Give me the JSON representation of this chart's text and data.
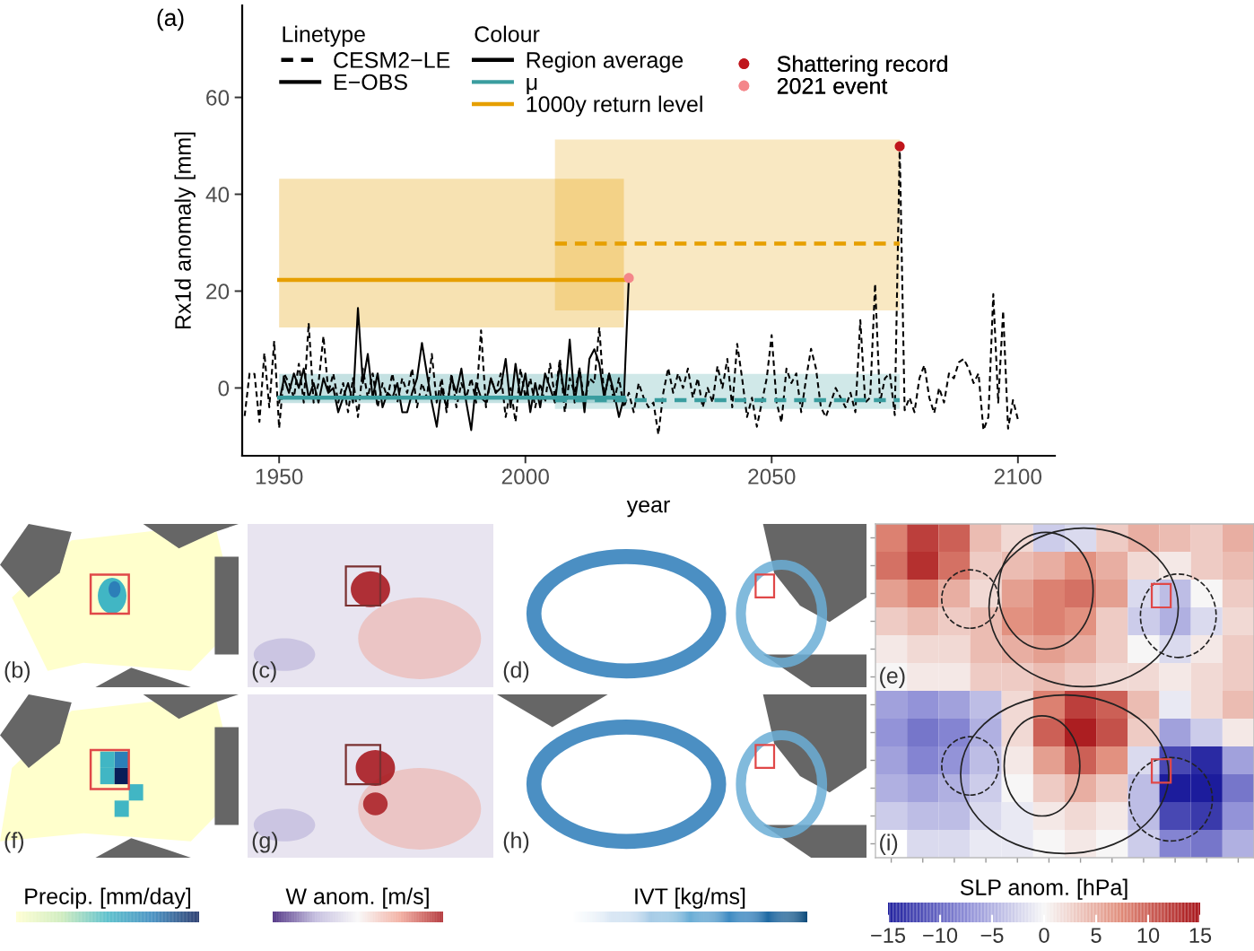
{
  "chart_data": [
    {
      "type": "line",
      "title": "(a)",
      "xlabel": "year",
      "ylabel": "Rx1d anomaly [mm]",
      "legend_title": [
        "Linetype",
        "Colour"
      ],
      "annotations": [
        "Region average"
      ],
      "legend": "top left",
      "grid": false,
      "xlim": [
        1942.5,
        2107.5
      ],
      "xticks": [
        1950,
        2000,
        2050,
        2100
      ],
      "ylim": [
        -14,
        79
      ],
      "yticks": [
        0,
        20,
        40,
        60
      ],
      "series": [
        {
          "name": "CESM2−LE",
          "type": "line",
          "line_style": "dashed",
          "color": "#000000",
          "x": [
            1943,
            1944,
            1945,
            1946,
            1947,
            1948,
            1949,
            1950,
            1951,
            1952,
            1953,
            1954,
            1955,
            1956,
            1957,
            1958,
            1959,
            1960,
            1961,
            1962,
            1963,
            1964,
            1965,
            1966,
            1967,
            1968,
            1969,
            1970,
            1971,
            1972,
            1973,
            1974,
            1975,
            1976,
            1977,
            1978,
            1979,
            1980,
            1981,
            1982,
            1983,
            1984,
            1985,
            1986,
            1987,
            1988,
            1989,
            1990,
            1991,
            1992,
            1993,
            1994,
            1995,
            1996,
            1997,
            1998,
            1999,
            2000,
            2001,
            2002,
            2003,
            2004,
            2005,
            2006,
            2007,
            2008,
            2009,
            2010,
            2011,
            2012,
            2013,
            2014,
            2015,
            2016,
            2017,
            2018,
            2019,
            2020,
            2021,
            2022,
            2023,
            2024,
            2025,
            2026,
            2027,
            2028,
            2029,
            2030,
            2031,
            2032,
            2033,
            2034,
            2035,
            2036,
            2037,
            2038,
            2039,
            2040,
            2041,
            2042,
            2043,
            2044,
            2045,
            2046,
            2047,
            2048,
            2049,
            2050,
            2051,
            2052,
            2053,
            2054,
            2055,
            2056,
            2057,
            2058,
            2059,
            2060,
            2061,
            2062,
            2063,
            2064,
            2065,
            2066,
            2067,
            2068,
            2069,
            2070,
            2071,
            2072,
            2073,
            2074,
            2075,
            2076,
            2077,
            2078,
            2079,
            2080,
            2081,
            2082,
            2083,
            2084,
            2085,
            2086,
            2087,
            2088,
            2089,
            2090,
            2091,
            2092,
            2093,
            2094,
            2095,
            2096,
            2097,
            2098,
            2099,
            2100
          ],
          "values": [
            -5.8,
            3,
            2.9,
            -7,
            7.2,
            -4,
            9.7,
            -8.3,
            3,
            1,
            -2,
            5,
            -3,
            13.4,
            -3,
            1,
            10.7,
            -1,
            3,
            -3,
            1,
            -5,
            2,
            -6,
            4,
            -2,
            3,
            -4,
            1,
            -2,
            3,
            -3,
            2,
            -1,
            4,
            -4,
            1,
            -2,
            7,
            -3,
            2,
            -5,
            3,
            -4,
            1,
            -2,
            2,
            -3,
            11.9,
            -4,
            2,
            -1,
            3,
            -6,
            0,
            -7,
            4,
            -2,
            2,
            -4,
            1,
            -3,
            5,
            -2,
            6,
            -5,
            2,
            -1,
            4,
            -3,
            2,
            1,
            12.5,
            -2,
            3,
            -3,
            2,
            -4,
            -1,
            -5,
            1,
            -2,
            -4,
            -3,
            -9.6,
            -1,
            4.1,
            -1,
            3,
            0,
            4,
            -2,
            2,
            -4,
            0,
            -3,
            4.5,
            0,
            6,
            -4,
            9.1,
            2,
            -6,
            -2,
            -8,
            -3,
            2,
            10.9,
            -3,
            -7.1,
            4,
            1,
            3,
            -5,
            2,
            8.1,
            4,
            -4,
            -6,
            -3,
            0,
            -2,
            -4,
            -1,
            -5,
            14,
            -3,
            -2,
            21.5,
            -3,
            2,
            3,
            -5.6,
            49.9,
            -4.6,
            -2,
            -5,
            2,
            4.7,
            -2,
            -5.2,
            0,
            -3,
            3,
            2,
            5.3,
            6,
            4,
            1,
            3,
            -8.7,
            -6,
            19.4,
            -3,
            15.9,
            -8.4,
            -2.5,
            -6.5
          ]
        },
        {
          "name": "E−OBS",
          "type": "line",
          "line_style": "solid",
          "color": "#000000",
          "x": [
            1950,
            1951,
            1952,
            1953,
            1954,
            1955,
            1956,
            1957,
            1958,
            1959,
            1960,
            1961,
            1962,
            1963,
            1964,
            1965,
            1966,
            1967,
            1968,
            1969,
            1970,
            1971,
            1972,
            1973,
            1974,
            1975,
            1976,
            1977,
            1978,
            1979,
            1980,
            1981,
            1982,
            1983,
            1984,
            1985,
            1986,
            1987,
            1988,
            1989,
            1990,
            1991,
            1992,
            1993,
            1994,
            1995,
            1996,
            1997,
            1998,
            1999,
            2000,
            2001,
            2002,
            2003,
            2004,
            2005,
            2006,
            2007,
            2008,
            2009,
            2010,
            2011,
            2012,
            2013,
            2014,
            2015,
            2016,
            2017,
            2018,
            2019,
            2020,
            2021
          ],
          "values": [
            -3,
            2,
            -1,
            3,
            0,
            4,
            -2,
            1,
            -3,
            2,
            -1,
            0,
            -5,
            -2,
            1,
            -3,
            16.5,
            1,
            7,
            -2,
            3,
            -4,
            -1,
            -2,
            1,
            -5,
            -5,
            -1,
            2,
            9.3,
            3,
            -3,
            -8,
            0,
            -4,
            2,
            -1,
            4,
            -3,
            -8.7,
            1,
            -2,
            -3,
            2,
            -1,
            0,
            6,
            -4,
            5,
            -2,
            3,
            -5,
            1,
            -4,
            3,
            0,
            -3,
            5,
            -2,
            10,
            -3,
            4,
            -5,
            6,
            8,
            5,
            -2,
            3,
            -1,
            -6,
            -2,
            22.7
          ]
        },
        {
          "name": "μ",
          "type": "line",
          "line_style": "solid",
          "color": "#3a9d9f",
          "x": [
            1950,
            2020
          ],
          "values": [
            -2,
            -2
          ],
          "lower": [
            -3.1,
            -3.1
          ],
          "upper": [
            2.9,
            2.9
          ]
        },
        {
          "type": "line",
          "line_style": "dashed",
          "color": "#3a9d9f",
          "x": [
            2006,
            2076
          ],
          "values": [
            -2.5,
            -2.5
          ],
          "lower": [
            -4.3,
            -4.3
          ],
          "upper": [
            2.9,
            2.9
          ]
        },
        {
          "name": "1000y return level",
          "type": "line",
          "line_style": "solid",
          "color": "#e69f00",
          "x": [
            1950,
            2020
          ],
          "values": [
            22.3,
            22.3
          ],
          "lower": [
            12.5,
            12.5
          ],
          "upper": [
            43.2,
            43.2
          ]
        },
        {
          "type": "line",
          "line_style": "dashed",
          "color": "#e69f00",
          "x": [
            2006,
            2076
          ],
          "values": [
            29.8,
            29.8
          ],
          "lower": [
            16,
            16
          ],
          "upper": [
            51.3,
            51.3
          ]
        },
        {
          "name": "Shattering record",
          "type": "scatter",
          "marker": "circle",
          "color": "#c0161c",
          "x": [
            2076
          ],
          "values": [
            49.9
          ]
        },
        {
          "name": "2021 event",
          "type": "scatter",
          "marker": "circle",
          "color": "#f4868a",
          "x": [
            2021
          ],
          "values": [
            22.7
          ]
        }
      ]
    },
    {
      "type": "other",
      "annotations": [
        "(b)",
        "(f)"
      ],
      "clabel": "Precip. [mm/day]",
      "colors": [
        "#ffffcc",
        "#c7e9b4",
        "#41b6c4",
        "#2c7fb8",
        "#081d58"
      ]
    },
    {
      "type": "other",
      "annotations": [
        "(c)",
        "(g)"
      ],
      "clabel": "W anom. [m/s]",
      "colors": [
        "#2d0a6b",
        "#b8b0d8",
        "#f7f7f7",
        "#f0a090",
        "#a50f15"
      ]
    },
    {
      "type": "other",
      "annotations": [
        "(d)",
        "(h)"
      ],
      "clabel": "IVT [kg/ms]",
      "colors": [
        "#ffffff",
        "#c6dbef",
        "#6baed6",
        "#2b7bb9",
        "#0b4a7a"
      ]
    },
    {
      "type": "heatmap",
      "annotations": [
        "(e)",
        "(i)"
      ],
      "clabel": "SLP anom. [hPa]",
      "colors": [
        "#1c1c9c",
        "#8c8cd6",
        "#f7f7f7",
        "#e08a78",
        "#a50f15"
      ],
      "clim": [
        -15,
        15
      ],
      "cticks": [
        {
          "value": -15,
          "label": "−15"
        },
        {
          "value": -10,
          "label": "−10"
        },
        {
          "value": -5,
          "label": "−5"
        },
        0,
        5,
        10,
        15
      ],
      "categories": [
        null,
        null,
        null,
        null,
        null,
        null,
        null,
        null,
        null,
        null,
        null,
        null
      ],
      "y_categories": [
        null,
        null,
        null,
        null,
        null,
        null,
        null,
        null,
        null,
        null,
        null,
        null
      ],
      "cells": [
        [
          8,
          12,
          10,
          4,
          2,
          -3,
          -2,
          3,
          5,
          4,
          3,
          5
        ],
        [
          9,
          13,
          9,
          3,
          4,
          5,
          7,
          5,
          2,
          1,
          3,
          4
        ],
        [
          6,
          8,
          5,
          2,
          6,
          8,
          9,
          6,
          -2,
          -4,
          0,
          3
        ],
        [
          3,
          4,
          3,
          4,
          7,
          8,
          7,
          3,
          -3,
          -5,
          -2,
          2
        ],
        [
          1,
          2,
          2,
          4,
          5,
          6,
          5,
          3,
          0,
          -2,
          1,
          3
        ],
        [
          0,
          1,
          1,
          3,
          3,
          4,
          3,
          2,
          2,
          1,
          2,
          3
        ],
        [
          -6,
          -7,
          -6,
          -4,
          2,
          8,
          12,
          10,
          4,
          -1,
          2,
          4
        ],
        [
          -7,
          -9,
          -8,
          -5,
          2,
          10,
          14,
          11,
          3,
          -6,
          -3,
          1
        ],
        [
          -6,
          -8,
          -7,
          -4,
          1,
          6,
          10,
          7,
          -2,
          -12,
          -14,
          -6
        ],
        [
          -5,
          -6,
          -5,
          -3,
          0,
          3,
          5,
          3,
          -4,
          -15,
          -15,
          -9
        ],
        [
          -3,
          -4,
          -4,
          -2,
          -1,
          1,
          2,
          1,
          -4,
          -12,
          -13,
          -7
        ],
        [
          null,
          -2,
          -2,
          -1,
          -1,
          0,
          1,
          0,
          -3,
          -8,
          -9,
          -5
        ]
      ]
    }
  ]
}
